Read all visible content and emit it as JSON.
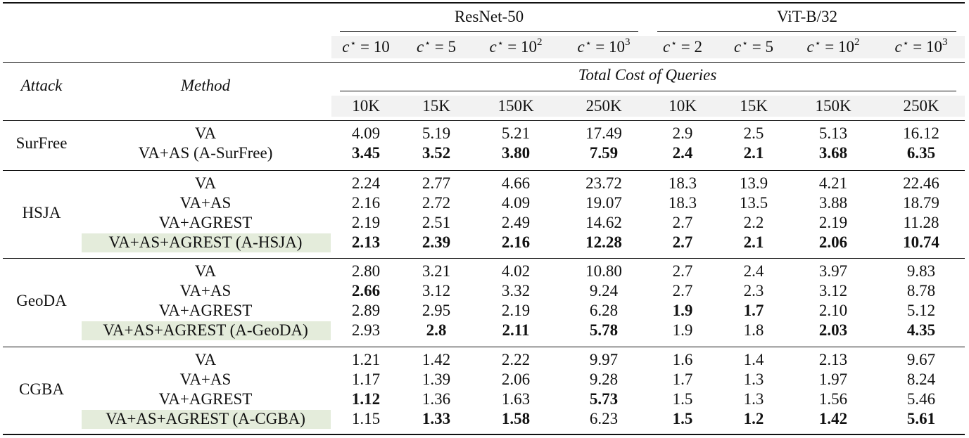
{
  "groups": [
    "ResNet-50",
    "ViT-B/32"
  ],
  "cost_headers": [
    {
      "base": "10",
      "exp": ""
    },
    {
      "base": "5",
      "exp": ""
    },
    {
      "base": "10",
      "exp": "2"
    },
    {
      "base": "10",
      "exp": "3"
    },
    {
      "base": "2",
      "exp": ""
    },
    {
      "base": "5",
      "exp": ""
    },
    {
      "base": "10",
      "exp": "2"
    },
    {
      "base": "10",
      "exp": "3"
    }
  ],
  "col_attack": "Attack",
  "col_method": "Method",
  "queries_header": "Total Cost of Queries",
  "query_budgets": [
    "10K",
    "15K",
    "150K",
    "250K",
    "10K",
    "15K",
    "150K",
    "250K"
  ],
  "sections": [
    {
      "attack": "SurFree",
      "rows": [
        {
          "method": "VA",
          "highlight": false,
          "values": [
            "4.09",
            "5.19",
            "5.21",
            "17.49",
            "2.9",
            "2.5",
            "5.13",
            "16.12"
          ],
          "bold": [
            0,
            0,
            0,
            0,
            0,
            0,
            0,
            0
          ]
        },
        {
          "method": "VA+AS (A-SurFree)",
          "highlight": false,
          "values": [
            "3.45",
            "3.52",
            "3.80",
            "7.59",
            "2.4",
            "2.1",
            "3.68",
            "6.35"
          ],
          "bold": [
            1,
            1,
            1,
            1,
            1,
            1,
            1,
            1
          ]
        }
      ]
    },
    {
      "attack": "HSJA",
      "rows": [
        {
          "method": "VA",
          "highlight": false,
          "values": [
            "2.24",
            "2.77",
            "4.66",
            "23.72",
            "18.3",
            "13.9",
            "4.21",
            "22.46"
          ],
          "bold": [
            0,
            0,
            0,
            0,
            0,
            0,
            0,
            0
          ]
        },
        {
          "method": "VA+AS",
          "highlight": false,
          "values": [
            "2.16",
            "2.72",
            "4.09",
            "19.07",
            "18.3",
            "13.5",
            "3.88",
            "18.79"
          ],
          "bold": [
            0,
            0,
            0,
            0,
            0,
            0,
            0,
            0
          ]
        },
        {
          "method": "VA+AGREST",
          "highlight": false,
          "values": [
            "2.19",
            "2.51",
            "2.49",
            "14.62",
            "2.7",
            "2.2",
            "2.19",
            "11.28"
          ],
          "bold": [
            0,
            0,
            0,
            0,
            0,
            0,
            0,
            0
          ]
        },
        {
          "method": "VA+AS+AGREST (A-HSJA)",
          "highlight": true,
          "values": [
            "2.13",
            "2.39",
            "2.16",
            "12.28",
            "2.7",
            "2.1",
            "2.06",
            "10.74"
          ],
          "bold": [
            1,
            1,
            1,
            1,
            1,
            1,
            1,
            1
          ]
        }
      ]
    },
    {
      "attack": "GeoDA",
      "rows": [
        {
          "method": "VA",
          "highlight": false,
          "values": [
            "2.80",
            "3.21",
            "4.02",
            "10.80",
            "2.7",
            "2.4",
            "3.97",
            "9.83"
          ],
          "bold": [
            0,
            0,
            0,
            0,
            0,
            0,
            0,
            0
          ]
        },
        {
          "method": "VA+AS",
          "highlight": false,
          "values": [
            "2.66",
            "3.12",
            "3.32",
            "9.24",
            "2.7",
            "2.3",
            "3.12",
            "8.78"
          ],
          "bold": [
            1,
            0,
            0,
            0,
            0,
            0,
            0,
            0
          ]
        },
        {
          "method": "VA+AGREST",
          "highlight": false,
          "values": [
            "2.89",
            "2.95",
            "2.19",
            "6.28",
            "1.9",
            "1.7",
            "2.10",
            "5.12"
          ],
          "bold": [
            0,
            0,
            0,
            0,
            1,
            1,
            0,
            0
          ]
        },
        {
          "method": "VA+AS+AGREST (A-GeoDA)",
          "highlight": true,
          "values": [
            "2.93",
            "2.8",
            "2.11",
            "5.78",
            "1.9",
            "1.8",
            "2.03",
            "4.35"
          ],
          "bold": [
            0,
            1,
            1,
            1,
            0,
            0,
            1,
            1
          ]
        }
      ]
    },
    {
      "attack": "CGBA",
      "rows": [
        {
          "method": "VA",
          "highlight": false,
          "values": [
            "1.21",
            "1.42",
            "2.22",
            "9.97",
            "1.6",
            "1.4",
            "2.13",
            "9.67"
          ],
          "bold": [
            0,
            0,
            0,
            0,
            0,
            0,
            0,
            0
          ]
        },
        {
          "method": "VA+AS",
          "highlight": false,
          "values": [
            "1.17",
            "1.39",
            "2.06",
            "9.28",
            "1.7",
            "1.3",
            "1.97",
            "8.24"
          ],
          "bold": [
            0,
            0,
            0,
            0,
            0,
            0,
            0,
            0
          ]
        },
        {
          "method": "VA+AGREST",
          "highlight": false,
          "values": [
            "1.12",
            "1.36",
            "1.63",
            "5.73",
            "1.5",
            "1.3",
            "1.56",
            "5.46"
          ],
          "bold": [
            1,
            0,
            0,
            1,
            0,
            0,
            0,
            0
          ]
        },
        {
          "method": "VA+AS+AGREST (A-CGBA)",
          "highlight": true,
          "values": [
            "1.15",
            "1.33",
            "1.58",
            "6.23",
            "1.5",
            "1.2",
            "1.42",
            "5.61"
          ],
          "bold": [
            0,
            1,
            1,
            0,
            1,
            1,
            1,
            1
          ]
        }
      ]
    }
  ]
}
